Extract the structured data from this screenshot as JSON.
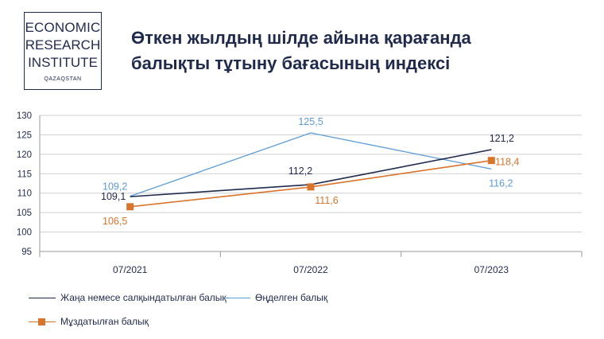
{
  "logo": {
    "line1": "ECONOMIC",
    "line2": "RESEARCH",
    "line3": "INSTITUTE",
    "line4": "QAZAQSTAN"
  },
  "title": {
    "line1": "Өткен жылдың шілде айына қарағанда",
    "line2": "балықты тұтыну бағасының индексі"
  },
  "colors": {
    "dark": "#1f2a4d",
    "blue": "#5b9bd5",
    "orange": "#d9742b",
    "grid": "#cfcfcf"
  },
  "chart_data": {
    "type": "line",
    "categories": [
      "07/2021",
      "07/2022",
      "07/2023"
    ],
    "ylim": [
      95,
      130
    ],
    "yticks": [
      "95",
      "100",
      "105",
      "110",
      "115",
      "120",
      "125",
      "130"
    ],
    "grid": true,
    "legend_position": "bottom-left",
    "series": [
      {
        "name": "Жаңа немесе салқындатылған балық",
        "values": [
          109.1,
          112.2,
          121.2
        ],
        "labels": [
          "109,1",
          "112,2",
          "121,2"
        ],
        "color": "#1f2a4d",
        "marker": "none"
      },
      {
        "name": "Өңделген балық",
        "values": [
          109.2,
          125.5,
          116.2
        ],
        "labels": [
          "109,2",
          "125,5",
          "116,2"
        ],
        "color": "#5b9bd5",
        "marker": "none"
      },
      {
        "name": "Мұздатылған балық",
        "values": [
          106.5,
          111.6,
          118.4
        ],
        "labels": [
          "106,5",
          "111,6",
          "118,4"
        ],
        "color": "#d9742b",
        "marker": "square"
      }
    ]
  }
}
